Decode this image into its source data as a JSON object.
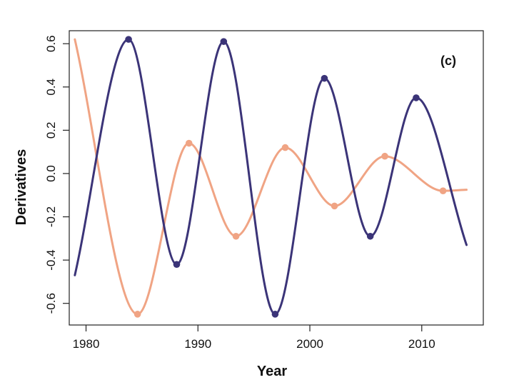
{
  "chart_data": {
    "type": "line",
    "title": "",
    "panel_label": "(c)",
    "xlabel": "Year",
    "ylabel": "Derivatives",
    "xlim": [
      1978.5,
      2015.5
    ],
    "ylim": [
      -0.7,
      0.66
    ],
    "xticks": [
      1980,
      1990,
      2000,
      2010
    ],
    "yticks": [
      -0.6,
      -0.4,
      -0.2,
      0.0,
      0.2,
      0.4,
      0.6
    ],
    "ytick_labels": [
      "-0.6",
      "-0.4",
      "-0.2",
      "0.0",
      "0.2",
      "0.4",
      "0.6"
    ],
    "grid": false,
    "legend": "none",
    "series": [
      {
        "color": "#3b3478",
        "x": [
          1979.0,
          1983.8,
          1988.1,
          1992.3,
          1996.9,
          2001.3,
          2005.4,
          2009.5,
          2014.0
        ],
        "y": [
          -0.47,
          0.62,
          -0.42,
          0.61,
          -0.65,
          0.44,
          -0.29,
          0.35,
          -0.33
        ],
        "markers": [
          1,
          2,
          3,
          4,
          5,
          6,
          7
        ]
      },
      {
        "color": "#f0a484",
        "x": [
          1979.0,
          1984.6,
          1989.2,
          1993.4,
          1997.8,
          2002.2,
          2006.7,
          2011.9,
          2014.0
        ],
        "y": [
          0.62,
          -0.65,
          0.14,
          -0.29,
          0.12,
          -0.15,
          0.08,
          -0.08,
          -0.075
        ],
        "markers": [
          1,
          2,
          3,
          4,
          5,
          6,
          7
        ]
      }
    ]
  }
}
